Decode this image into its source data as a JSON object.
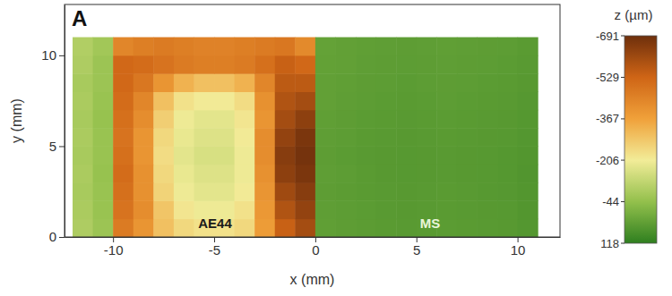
{
  "chart_data": {
    "type": "heatmap",
    "title": "A",
    "xlabel": "x (mm)",
    "ylabel": "y (mm)",
    "annotations": [
      "AE44",
      "MS"
    ],
    "xlim": [
      -12.4,
      12.1
    ],
    "ylim": [
      0,
      12.8
    ],
    "xticks": [
      -10,
      -5,
      0,
      5,
      10
    ],
    "yticks": [
      0,
      5,
      10
    ],
    "x": [
      -11.5,
      -10.5,
      -9.5,
      -8.5,
      -7.5,
      -6.5,
      -5.5,
      -4.5,
      -3.5,
      -2.5,
      -1.5,
      -0.5,
      0.5,
      1.5,
      2.5,
      3.5,
      4.5,
      5.5,
      6.5,
      7.5,
      8.5,
      9.5,
      10.5
    ],
    "y": [
      0.5,
      1.5,
      2.5,
      3.5,
      4.5,
      5.5,
      6.5,
      7.5,
      8.5,
      9.5,
      10.5
    ],
    "z": [
      [
        -90,
        -60,
        -470,
        -400,
        -300,
        -250,
        -230,
        -230,
        -250,
        -380,
        -540,
        -600,
        38,
        42,
        45,
        48,
        50,
        48,
        46,
        48,
        50,
        52,
        58
      ],
      [
        -85,
        -55,
        -490,
        -420,
        -290,
        -220,
        -200,
        -200,
        -230,
        -390,
        -580,
        -630,
        40,
        44,
        46,
        50,
        52,
        50,
        48,
        50,
        52,
        54,
        60
      ],
      [
        -80,
        -55,
        -500,
        -410,
        -260,
        -200,
        -180,
        -180,
        -210,
        -400,
        -610,
        -650,
        42,
        45,
        48,
        50,
        52,
        50,
        48,
        50,
        53,
        55,
        60
      ],
      [
        -85,
        -50,
        -510,
        -410,
        -250,
        -190,
        -170,
        -170,
        -200,
        -410,
        -640,
        -670,
        40,
        44,
        48,
        52,
        54,
        52,
        50,
        52,
        54,
        56,
        62
      ],
      [
        -80,
        -55,
        -500,
        -400,
        -240,
        -180,
        -160,
        -160,
        -200,
        -420,
        -650,
        -680,
        42,
        46,
        50,
        52,
        54,
        52,
        50,
        52,
        54,
        56,
        60
      ],
      [
        -85,
        -55,
        -490,
        -400,
        -250,
        -190,
        -170,
        -170,
        -210,
        -420,
        -630,
        -670,
        40,
        44,
        48,
        50,
        52,
        50,
        48,
        50,
        52,
        54,
        58
      ],
      [
        -80,
        -50,
        -500,
        -420,
        -270,
        -200,
        -180,
        -180,
        -220,
        -400,
        -600,
        -640,
        38,
        42,
        46,
        48,
        50,
        48,
        46,
        48,
        50,
        52,
        56
      ],
      [
        -85,
        -55,
        -510,
        -440,
        -300,
        -230,
        -210,
        -210,
        -240,
        -410,
        -580,
        -600,
        36,
        40,
        44,
        46,
        48,
        46,
        44,
        46,
        48,
        50,
        55
      ],
      [
        -80,
        -60,
        -520,
        -480,
        -400,
        -330,
        -300,
        -300,
        -330,
        -440,
        -560,
        -560,
        35,
        38,
        42,
        44,
        46,
        44,
        42,
        44,
        46,
        48,
        52
      ],
      [
        -90,
        -60,
        -520,
        -510,
        -490,
        -470,
        -460,
        -460,
        -470,
        -500,
        -540,
        -520,
        34,
        36,
        40,
        42,
        44,
        42,
        40,
        42,
        44,
        46,
        50
      ],
      [
        -95,
        -70,
        -440,
        -460,
        -470,
        -460,
        -450,
        -450,
        -460,
        -470,
        -480,
        -430,
        32,
        35,
        38,
        40,
        42,
        40,
        38,
        40,
        42,
        44,
        48
      ]
    ],
    "colorbar": {
      "label": "z (µm)",
      "range": [
        -691,
        118
      ],
      "ticks": [
        -691,
        -529,
        -367,
        -206,
        -44,
        118
      ]
    }
  }
}
